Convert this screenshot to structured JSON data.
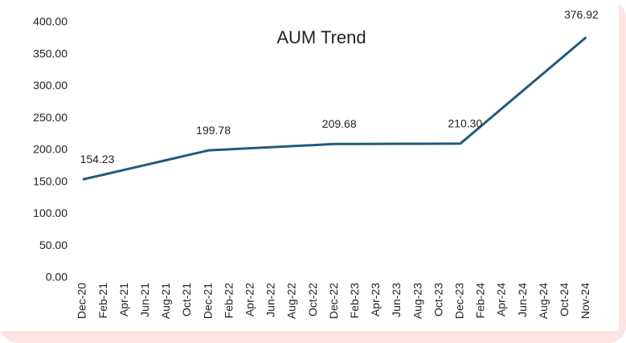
{
  "chart_data": {
    "type": "line",
    "title": "AUM Trend",
    "categories": [
      "Dec-20",
      "Feb-21",
      "Apr-21",
      "Jun-21",
      "Aug-21",
      "Oct-21",
      "Dec-21",
      "Feb-22",
      "Apr-22",
      "Jun-22",
      "Aug-22",
      "Oct-22",
      "Dec-22",
      "Feb-23",
      "Apr-23",
      "Jun-23",
      "Aug-23",
      "Oct-23",
      "Dec-23",
      "Feb-24",
      "Apr-24",
      "Jun-24",
      "Aug-24",
      "Oct-24",
      "Nov-24"
    ],
    "series": [
      {
        "name": "AUM",
        "color": "#1f5b7e",
        "values": [
          154.23,
          161.82,
          169.41,
          177.01,
          184.6,
          192.19,
          199.78,
          201.43,
          203.08,
          204.73,
          206.38,
          208.03,
          209.68,
          209.78,
          209.89,
          209.99,
          210.09,
          210.2,
          210.3,
          238.07,
          265.84,
          293.61,
          321.38,
          349.15,
          376.92
        ],
        "value_labels": [
          "154.23",
          null,
          null,
          null,
          null,
          null,
          "199.78",
          null,
          null,
          null,
          null,
          null,
          "209.68",
          null,
          null,
          null,
          null,
          null,
          "210.30",
          null,
          null,
          null,
          null,
          null,
          "376.92"
        ]
      }
    ],
    "ylim": [
      0,
      400
    ],
    "yticks": [
      {
        "value": 0,
        "label": "0.00"
      },
      {
        "value": 50,
        "label": "50.00"
      },
      {
        "value": 100,
        "label": "100.00"
      },
      {
        "value": 150,
        "label": "150.00"
      },
      {
        "value": 200,
        "label": "200.00"
      },
      {
        "value": 250,
        "label": "250.00"
      },
      {
        "value": 300,
        "label": "300.00"
      },
      {
        "value": 350,
        "label": "350.00"
      },
      {
        "value": 400,
        "label": "400.00"
      }
    ],
    "grid": false
  }
}
